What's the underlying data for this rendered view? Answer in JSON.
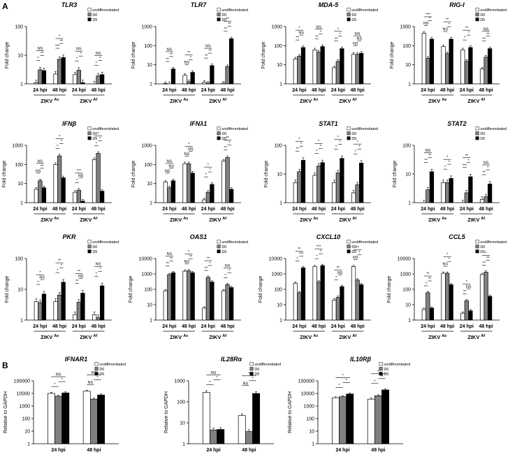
{
  "panels": [
    {
      "label": "A"
    },
    {
      "label": "B"
    }
  ],
  "chart_data": [
    {
      "type": "bar",
      "title": "TLR3",
      "ylabel": "Fold change",
      "yscale": "log",
      "ylim": [
        1,
        100
      ],
      "ticks": [
        "1",
        "10",
        "100"
      ],
      "categories": [
        "24 hpi",
        "48 hpi",
        "24 hpi",
        "48 hpi"
      ],
      "groups": [
        {
          "label": "ZIKV",
          "sup": "As"
        },
        {
          "label": "ZIKV",
          "sup": "Af"
        }
      ],
      "legend": [
        "undifferentiated",
        "D0",
        "D5"
      ],
      "series": [
        {
          "name": "undifferentiated",
          "values": [
            1.1,
            2.2,
            2.1,
            1.0
          ]
        },
        {
          "name": "D0",
          "values": [
            3.1,
            7.2,
            3.0,
            1.9
          ]
        },
        {
          "name": "D5",
          "values": [
            2.9,
            8.3,
            1.1,
            2.1
          ]
        }
      ],
      "annotations": [
        "*",
        "**",
        "NS",
        "***",
        "**",
        "*",
        "*",
        "*",
        "NS",
        "*",
        "*",
        "NS"
      ]
    },
    {
      "type": "bar",
      "title": "TLR7",
      "ylabel": "Fold change",
      "yscale": "log",
      "ylim": [
        1,
        1000
      ],
      "ticks": [
        "1",
        "10",
        "100",
        "1000"
      ],
      "categories": [
        "24 hpi",
        "48 hpi",
        "24 hpi",
        "48 hpi"
      ],
      "groups": [
        {
          "label": "ZIKV",
          "sup": "As"
        },
        {
          "label": "ZIKV",
          "sup": "Af"
        }
      ],
      "legend": [
        "undifferentiated",
        "D0",
        "D5"
      ],
      "series": [
        {
          "name": "undifferentiated",
          "values": [
            1.05,
            2.8,
            1.2,
            1.1
          ]
        },
        {
          "name": "D0",
          "values": [
            1.0,
            1.3,
            1.1,
            8.0
          ]
        },
        {
          "name": "D5",
          "values": [
            6.0,
            4.0,
            9.0,
            230
          ]
        }
      ],
      "annotations": [
        "**",
        "**",
        "NS",
        "NS",
        "*",
        "**",
        "**",
        "**",
        "NS",
        "**",
        "**",
        "**"
      ]
    },
    {
      "type": "bar",
      "title": "MDA-5",
      "ylabel": "Fold change",
      "yscale": "log",
      "ylim": [
        1,
        1000
      ],
      "ticks": [
        "1",
        "10",
        "100",
        "1000"
      ],
      "categories": [
        "24 hpi",
        "48 hpi",
        "24 hpi",
        "48 hpi"
      ],
      "groups": [
        {
          "label": "ZIKV",
          "sup": "As"
        },
        {
          "label": "ZIKV",
          "sup": "Af"
        }
      ],
      "legend": [
        "undifferentiated",
        "D0",
        "D5"
      ],
      "series": [
        {
          "name": "undifferentiated",
          "values": [
            20,
            60,
            7,
            35
          ]
        },
        {
          "name": "D0",
          "values": [
            28,
            45,
            15,
            35
          ]
        },
        {
          "name": "D5",
          "values": [
            80,
            90,
            70,
            40
          ]
        }
      ],
      "annotations": [
        "**",
        "NS",
        "*",
        "**",
        "*",
        "NS",
        "**",
        "*",
        "*",
        "NS",
        "NS",
        "NS"
      ]
    },
    {
      "type": "bar",
      "title": "RIG-I",
      "ylabel": "Fold change",
      "yscale": "log",
      "ylim": [
        1,
        1000
      ],
      "ticks": [
        "1",
        "10",
        "100",
        "1000"
      ],
      "categories": [
        "24 hpi",
        "48 hpi",
        "24 hpi",
        "48 hpi"
      ],
      "groups": [
        {
          "label": "ZIKV",
          "sup": "As"
        },
        {
          "label": "ZIKV",
          "sup": "Af"
        }
      ],
      "legend": [
        "undifferentiated",
        "D0",
        "D5"
      ],
      "series": [
        {
          "name": "undifferentiated",
          "values": [
            450,
            90,
            60,
            6
          ]
        },
        {
          "name": "D0",
          "values": [
            22,
            38,
            15,
            25
          ]
        },
        {
          "name": "D5",
          "values": [
            220,
            220,
            80,
            70
          ]
        }
      ],
      "annotations": [
        "NS",
        "*",
        "***",
        "NS",
        "*",
        "**",
        "*",
        "*",
        "**",
        "**",
        "**",
        "NS"
      ]
    },
    {
      "type": "bar",
      "title": "IFNβ",
      "ylabel": "Fold change",
      "yscale": "log",
      "ylim": [
        1,
        1000
      ],
      "ticks": [
        "1",
        "10",
        "100",
        "1000"
      ],
      "categories": [
        "24 hpi",
        "48 hpi",
        "24 hpi",
        "48 hpi"
      ],
      "groups": [
        {
          "label": "ZIKV",
          "sup": "As"
        },
        {
          "label": "ZIKV",
          "sup": "Af"
        }
      ],
      "legend": [
        "undifferentiated",
        "D0",
        "D5"
      ],
      "series": [
        {
          "name": "undifferentiated",
          "values": [
            5,
            100,
            3.5,
            180
          ]
        },
        {
          "name": "D0",
          "values": [
            14,
            280,
            4.5,
            380
          ]
        },
        {
          "name": "D5",
          "values": [
            6,
            20,
            1.2,
            4
          ]
        }
      ],
      "annotations": [
        "NS",
        "**",
        "NS",
        "*",
        "*",
        "*",
        "*",
        "NS",
        "***",
        "*",
        "*",
        "*"
      ]
    },
    {
      "type": "bar",
      "title": "IFNλ1",
      "ylabel": "Fold change",
      "yscale": "log",
      "ylim": [
        1,
        1000
      ],
      "ticks": [
        "1",
        "10",
        "100",
        "1000"
      ],
      "categories": [
        "24 hpi",
        "48 hpi",
        "24 hpi",
        "48 hpi"
      ],
      "groups": [
        {
          "label": "ZIKV",
          "sup": "As"
        },
        {
          "label": "ZIKV",
          "sup": "Af"
        }
      ],
      "legend": [
        "undifferentiated",
        "D0",
        "D5"
      ],
      "series": [
        {
          "name": "undifferentiated",
          "values": [
            12,
            110,
            1.4,
            150
          ]
        },
        {
          "name": "D0",
          "values": [
            6,
            110,
            3.5,
            230
          ]
        },
        {
          "name": "D5",
          "values": [
            14,
            35,
            9,
            5
          ]
        }
      ],
      "annotations": [
        "NS",
        "NS",
        "NS",
        "NS",
        "NS",
        "*",
        "*",
        "*",
        "*",
        "**",
        "*",
        "**"
      ]
    },
    {
      "type": "bar",
      "title": "STAT1",
      "ylabel": "Fold change",
      "yscale": "log",
      "ylim": [
        1,
        100
      ],
      "ticks": [
        "1",
        "10",
        "100"
      ],
      "categories": [
        "24 hpi",
        "48 hpi",
        "24 hpi",
        "48 hpi"
      ],
      "groups": [
        {
          "label": "ZIKV",
          "sup": "As"
        },
        {
          "label": "ZIKV",
          "sup": "Af"
        }
      ],
      "legend": [
        "undifferentiated",
        "D0",
        "D5"
      ],
      "series": [
        {
          "name": "undifferentiated",
          "values": [
            5,
            9,
            5,
            2.2
          ]
        },
        {
          "name": "D0",
          "values": [
            12,
            19,
            11,
            4.2
          ]
        },
        {
          "name": "D5",
          "values": [
            30,
            25,
            35,
            24
          ]
        }
      ],
      "annotations": [
        "**",
        "*",
        "*",
        "*",
        "*",
        "*",
        "*",
        "*",
        "*",
        "*",
        "*",
        "*"
      ]
    },
    {
      "type": "bar",
      "title": "STAT2",
      "ylabel": "Fold change",
      "yscale": "log",
      "ylim": [
        1,
        100
      ],
      "ticks": [
        "1",
        "10",
        "100"
      ],
      "categories": [
        "24 hpi",
        "48 hpi",
        "24 hpi",
        "48 hpi"
      ],
      "groups": [
        {
          "label": "ZIKV",
          "sup": "As"
        },
        {
          "label": "ZIKV",
          "sup": "Af"
        }
      ],
      "legend": [
        "undifferentiated",
        "D0",
        "D5"
      ],
      "series": [
        {
          "name": "undifferentiated",
          "values": [
            1.0,
            5,
            1.0,
            1.3
          ]
        },
        {
          "name": "D0",
          "values": [
            2.8,
            5,
            2.2,
            1.6
          ]
        },
        {
          "name": "D5",
          "values": [
            12,
            7,
            8,
            4.5
          ]
        }
      ],
      "annotations": [
        "**",
        "**",
        "NS",
        "*",
        "*",
        "*",
        "***",
        "*",
        "**",
        "**",
        "*",
        "NS"
      ]
    },
    {
      "type": "bar",
      "title": "PKR",
      "ylabel": "Fold change",
      "yscale": "log",
      "ylim": [
        1,
        100
      ],
      "ticks": [
        "1",
        "10",
        "100"
      ],
      "categories": [
        "24 hpi",
        "48 hpi",
        "24 hpi",
        "48 hpi"
      ],
      "groups": [
        {
          "label": "ZIKV",
          "sup": "As"
        },
        {
          "label": "ZIKV",
          "sup": "Af"
        }
      ],
      "legend": [
        "undifferentiated",
        "D0",
        "D5"
      ],
      "series": [
        {
          "name": "undifferentiated",
          "values": [
            4,
            4,
            1.5,
            1.5
          ]
        },
        {
          "name": "D0",
          "values": [
            3.7,
            6.5,
            3.8,
            1.2
          ]
        },
        {
          "name": "D5",
          "values": [
            7,
            17,
            7.5,
            13
          ]
        }
      ],
      "annotations": [
        "*",
        "NS",
        "*",
        "*",
        "*",
        "**",
        "**",
        "NS",
        "**",
        "*",
        "*",
        "NS"
      ]
    },
    {
      "type": "bar",
      "title": "OAS1",
      "ylabel": "Fold change",
      "yscale": "log",
      "ylim": [
        1,
        10000
      ],
      "ticks": [
        "1",
        "10",
        "100",
        "1000",
        "10000"
      ],
      "categories": [
        "24 hpi",
        "48 hpi",
        "24 hpi",
        "48 hpi"
      ],
      "groups": [
        {
          "label": "ZIKV",
          "sup": "As"
        },
        {
          "label": "ZIKV",
          "sup": "Af"
        }
      ],
      "legend": [
        "undifferentiated",
        "D0",
        "D5"
      ],
      "series": [
        {
          "name": "undifferentiated",
          "values": [
            80,
            1500,
            6,
            80
          ]
        },
        {
          "name": "D0",
          "values": [
            900,
            1600,
            600,
            200
          ]
        },
        {
          "name": "D5",
          "values": [
            1200,
            1200,
            300,
            130
          ]
        }
      ],
      "annotations": [
        "**",
        "**",
        "NS",
        "NS",
        "**",
        "*",
        "**",
        "*",
        "**",
        "*",
        "*",
        "NS"
      ]
    },
    {
      "type": "bar",
      "title": "CXCL10",
      "ylabel": "Fold change",
      "yscale": "log",
      "ylim": [
        1,
        10000
      ],
      "ticks": [
        "1",
        "10",
        "100",
        "1000",
        "10000"
      ],
      "categories": [
        "24 hpi",
        "48 hpi",
        "24 hpi",
        "48 hpi"
      ],
      "groups": [
        {
          "label": "ZIKV",
          "sup": "As"
        },
        {
          "label": "ZIKV",
          "sup": "Af"
        }
      ],
      "legend": [
        "undifferentiated",
        "D0",
        "D5"
      ],
      "series": [
        {
          "name": "undifferentiated",
          "values": [
            250,
            3000,
            20,
            3000
          ]
        },
        {
          "name": "D0",
          "values": [
            60,
            300,
            30,
            400
          ]
        },
        {
          "name": "D5",
          "values": [
            2500,
            3500,
            150,
            200
          ]
        }
      ],
      "annotations": [
        "*",
        "***",
        "**",
        "*",
        "*",
        "***",
        "*",
        "NS",
        "**",
        "NS",
        "*",
        "**"
      ]
    },
    {
      "type": "bar",
      "title": "CCL5",
      "ylabel": "Fold change",
      "yscale": "log",
      "ylim": [
        1,
        10000
      ],
      "ticks": [
        "1",
        "10",
        "100",
        "1000",
        "10000"
      ],
      "categories": [
        "24 hpi",
        "48 hpi",
        "24 hpi",
        "48 hpi"
      ],
      "groups": [
        {
          "label": "ZIKV",
          "sup": "As"
        },
        {
          "label": "ZIKV",
          "sup": "Af"
        }
      ],
      "legend": [
        "undifferentiated",
        "D0",
        "D5"
      ],
      "series": [
        {
          "name": "undifferentiated",
          "values": [
            5,
            1100,
            2.8,
            900
          ]
        },
        {
          "name": "D0",
          "values": [
            60,
            1100,
            18,
            1300
          ]
        },
        {
          "name": "D5",
          "values": [
            6,
            200,
            4,
            35
          ]
        }
      ],
      "annotations": [
        "*",
        "**",
        "**",
        "NS",
        "*",
        "*",
        "**",
        "NS",
        "*",
        "**",
        "**",
        "*"
      ]
    },
    {
      "type": "bar",
      "title": "IFNAR1",
      "ylabel": "Relative to GAPDH",
      "yscale": "log",
      "ylim": [
        1,
        100000
      ],
      "ticks": [
        "1",
        "10",
        "100",
        "1000",
        "10000",
        "100000"
      ],
      "categories": [
        "24 hpi",
        "48 hpi"
      ],
      "legend": [
        "undifferentiated",
        "D0",
        "D5"
      ],
      "series": [
        {
          "name": "undifferentiated",
          "values": [
            10000,
            15000
          ]
        },
        {
          "name": "D0",
          "values": [
            6000,
            3500
          ]
        },
        {
          "name": "D5",
          "values": [
            11000,
            7500
          ]
        }
      ],
      "annotations": [
        "*",
        "*",
        "NS",
        "NS",
        "*",
        "NS"
      ]
    },
    {
      "type": "bar",
      "title": "IL28Rα",
      "ylabel": "Relative to GAPDH",
      "yscale": "log",
      "ylim": [
        1,
        1000
      ],
      "ticks": [
        "1",
        "10",
        "100",
        "1000"
      ],
      "categories": [
        "24 hpi",
        "48 hpi"
      ],
      "legend": [
        "undifferentiated",
        "D0",
        "D5"
      ],
      "series": [
        {
          "name": "undifferentiated",
          "values": [
            280,
            22
          ]
        },
        {
          "name": "D0",
          "values": [
            4.5,
            3.8
          ]
        },
        {
          "name": "D5",
          "values": [
            4.8,
            250
          ]
        }
      ],
      "annotations": [
        "*",
        "*",
        "NS",
        "NS",
        "*",
        "*"
      ]
    },
    {
      "type": "bar",
      "title": "IL10Rβ",
      "ylabel": "Relative to GAPDH",
      "yscale": "log",
      "ylim": [
        1,
        100000
      ],
      "ticks": [
        "1",
        "10",
        "100",
        "1000",
        "10000",
        "100000"
      ],
      "categories": [
        "24 hpi",
        "48 hpi"
      ],
      "legend": [
        "undifferentiated",
        "D0",
        "D5"
      ],
      "series": [
        {
          "name": "undifferentiated",
          "values": [
            4500,
            3500
          ]
        },
        {
          "name": "D0",
          "values": [
            5500,
            6500
          ]
        },
        {
          "name": "D5",
          "values": [
            9000,
            19000
          ]
        }
      ],
      "annotations": [
        "*",
        "*",
        "*",
        "*",
        "**",
        "*"
      ]
    }
  ],
  "colors": {
    "undifferentiated": "#ffffff",
    "D0": "#808080",
    "D5": "#000000"
  }
}
